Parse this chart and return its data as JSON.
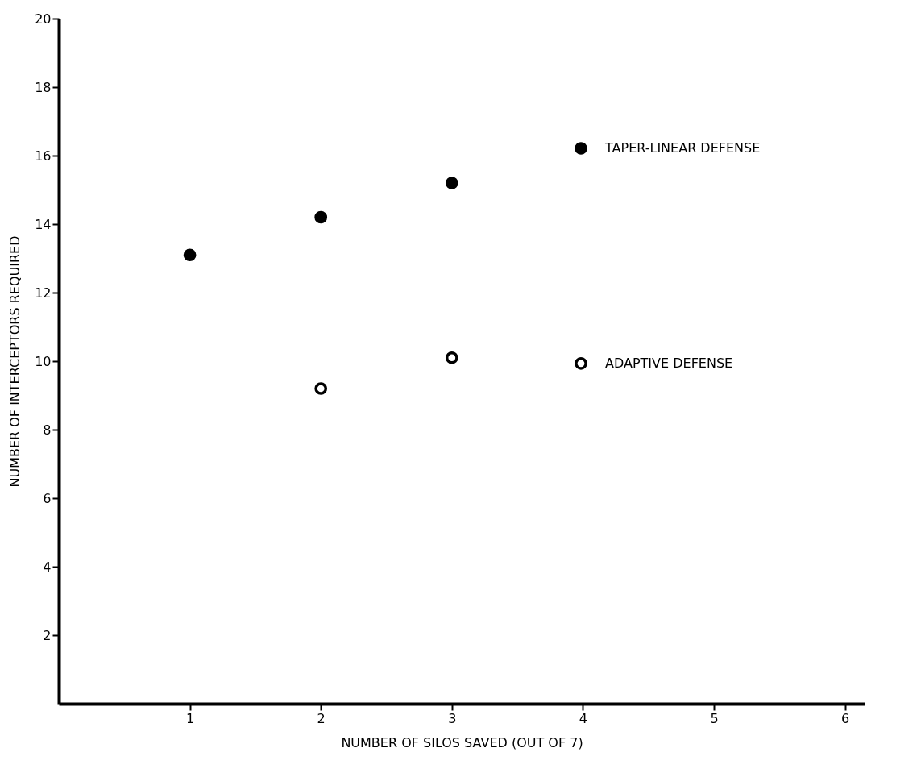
{
  "chart_data": {
    "type": "scatter",
    "xlabel": "NUMBER OF SILOS SAVED (OUT OF 7)",
    "ylabel": "NUMBER OF INTERCEPTORS REQUIRED",
    "xlim": [
      0,
      6.15
    ],
    "xticks": [
      1,
      2,
      3,
      4,
      5,
      6
    ],
    "ylim": [
      0,
      20
    ],
    "yticks": [
      2,
      4,
      6,
      8,
      10,
      12,
      14,
      16,
      18,
      20
    ],
    "series": [
      {
        "name": "TAPER-LINEAR DEFENSE",
        "color": "#000000",
        "x": [
          1,
          2,
          3
        ],
        "values": [
          13.1,
          14.2,
          15.2
        ]
      },
      {
        "name": "ADAPTIVE DEFENSE",
        "color": "#000000",
        "x": [
          2,
          3
        ],
        "values": [
          9.2,
          10.1
        ]
      }
    ],
    "marker": "circle",
    "grid": false,
    "legend": "right"
  }
}
